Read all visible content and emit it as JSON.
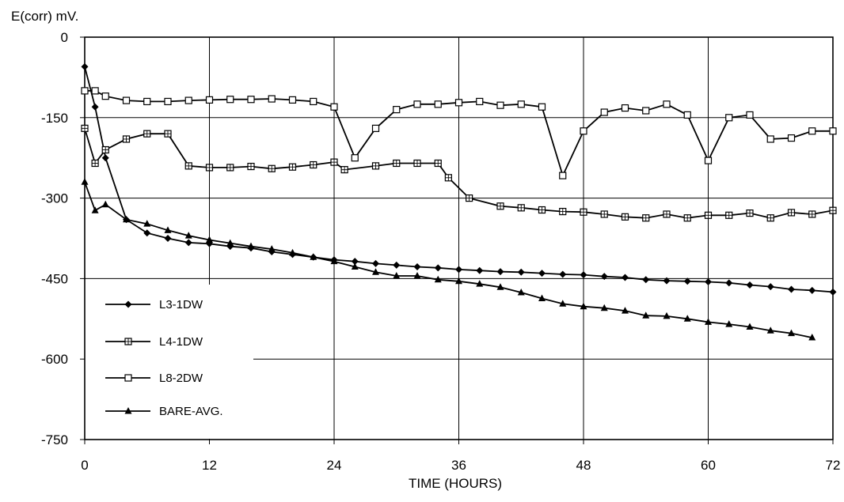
{
  "chart_data": {
    "type": "line",
    "ylabel": "E(corr) mV.",
    "xlabel": "TIME (HOURS)",
    "xlim": [
      0,
      72
    ],
    "ylim": [
      -750,
      0
    ],
    "xticks": [
      "0",
      "12",
      "24",
      "36",
      "48",
      "60",
      "72"
    ],
    "yticks": [
      "0",
      "-150",
      "-300",
      "-450",
      "-600",
      "-750"
    ],
    "grid": true,
    "legend_position": "bottom-left",
    "series": [
      {
        "name": "L3-1DW",
        "marker": "diamond",
        "x": [
          0,
          1,
          2,
          4,
          6,
          8,
          10,
          12,
          14,
          16,
          18,
          20,
          22,
          24,
          26,
          28,
          30,
          32,
          34,
          36,
          38,
          40,
          42,
          44,
          46,
          48,
          50,
          52,
          54,
          56,
          58,
          60,
          62,
          64,
          66,
          68,
          70,
          72
        ],
        "values": [
          -55,
          -130,
          -225,
          -340,
          -365,
          -375,
          -383,
          -385,
          -390,
          -393,
          -400,
          -405,
          -410,
          -415,
          -418,
          -422,
          -425,
          -428,
          -430,
          -433,
          -435,
          -437,
          -438,
          -440,
          -442,
          -443,
          -446,
          -448,
          -452,
          -454,
          -455,
          -456,
          -458,
          -462,
          -465,
          -470,
          -472,
          -475
        ]
      },
      {
        "name": "L4-1DW",
        "marker": "crossed-square",
        "x": [
          0,
          1,
          2,
          4,
          6,
          8,
          10,
          12,
          14,
          16,
          18,
          20,
          22,
          24,
          25,
          28,
          30,
          32,
          34,
          35,
          37,
          40,
          42,
          44,
          46,
          48,
          50,
          52,
          54,
          56,
          58,
          60,
          62,
          64,
          66,
          68,
          70,
          72
        ],
        "values": [
          -170,
          -235,
          -210,
          -190,
          -180,
          -180,
          -240,
          -243,
          -243,
          -241,
          -245,
          -242,
          -238,
          -233,
          -247,
          -240,
          -235,
          -235,
          -235,
          -262,
          -300,
          -315,
          -318,
          -322,
          -325,
          -326,
          -330,
          -335,
          -337,
          -330,
          -337,
          -332,
          -332,
          -328,
          -337,
          -327,
          -330,
          -323
        ]
      },
      {
        "name": "L8-2DW",
        "marker": "open-square",
        "x": [
          0,
          1,
          2,
          4,
          6,
          8,
          10,
          12,
          14,
          16,
          18,
          20,
          22,
          24,
          26,
          28,
          30,
          32,
          34,
          36,
          38,
          40,
          42,
          44,
          46,
          48,
          50,
          52,
          54,
          56,
          58,
          60,
          62,
          64,
          66,
          68,
          70,
          72
        ],
        "values": [
          -100,
          -100,
          -110,
          -118,
          -120,
          -120,
          -118,
          -117,
          -116,
          -116,
          -115,
          -117,
          -120,
          -130,
          -225,
          -170,
          -135,
          -125,
          -125,
          -122,
          -120,
          -127,
          -125,
          -130,
          -258,
          -175,
          -140,
          -132,
          -137,
          -125,
          -145,
          -230,
          -150,
          -145,
          -190,
          -188,
          -175,
          -175
        ]
      },
      {
        "name": "BARE-AVG.",
        "marker": "triangle",
        "x": [
          0,
          1,
          2,
          4,
          6,
          8,
          10,
          12,
          14,
          16,
          18,
          20,
          22,
          24,
          26,
          28,
          30,
          32,
          34,
          36,
          38,
          40,
          42,
          44,
          46,
          48,
          50,
          52,
          54,
          56,
          58,
          60,
          62,
          64,
          66,
          68,
          70
        ],
        "values": [
          -270,
          -323,
          -312,
          -340,
          -348,
          -360,
          -370,
          -378,
          -384,
          -390,
          -395,
          -402,
          -410,
          -418,
          -428,
          -438,
          -445,
          -445,
          -452,
          -455,
          -460,
          -466,
          -476,
          -487,
          -497,
          -502,
          -505,
          -510,
          -519,
          -520,
          -525,
          -531,
          -535,
          -540,
          -547,
          -552,
          -560
        ]
      }
    ]
  }
}
